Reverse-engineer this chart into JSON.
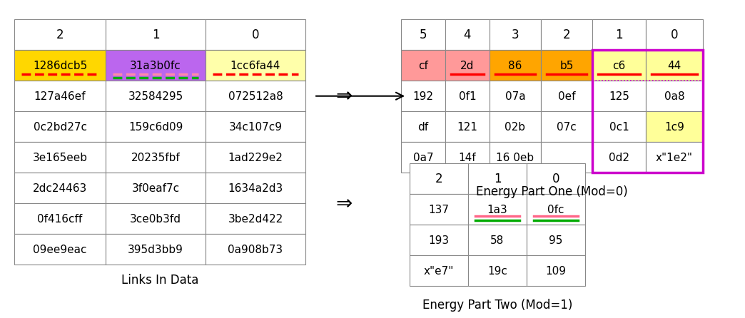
{
  "left_headers": [
    "2",
    "1",
    "0"
  ],
  "left_rows": [
    [
      "1286dcb5",
      "31a3b0fc",
      "1cc6fa44"
    ],
    [
      "127a46ef",
      "32584295",
      "072512a8"
    ],
    [
      "0c2bd27c",
      "159c6d09",
      "34c107c9"
    ],
    [
      "3e165eeb",
      "20235fbf",
      "1ad229e2"
    ],
    [
      "2dc24463",
      "3f0eaf7c",
      "1634a2d3"
    ],
    [
      "0f416cff",
      "3ce0b3fd",
      "3be2d422"
    ],
    [
      "09ee9eac",
      "395d3bb9",
      "0a908b73"
    ]
  ],
  "left_row0_bg": [
    "#FFD700",
    "#BB66EE",
    "#FFFFAA"
  ],
  "left_title": "Links In Data",
  "rt_headers": [
    "5",
    "4",
    "3",
    "2",
    "1",
    "0"
  ],
  "rt_rows": [
    [
      "cf",
      "2d",
      "86",
      "b5",
      "c6",
      "44"
    ],
    [
      "192",
      "0f1",
      "07a",
      "0ef",
      "125",
      "0a8"
    ],
    [
      "df",
      "121",
      "02b",
      "07c",
      "0c1",
      "1c9"
    ],
    [
      "0a7",
      "14f",
      "16 0eb",
      "",
      "0d2",
      "x\"1e2\""
    ]
  ],
  "rt_row0_bg": [
    "#FF9999",
    "#FF9999",
    "#FFA500",
    "#FFA500",
    "#FFFF99",
    "#FFFF99"
  ],
  "rt_title": "Energy Part One (Mod=0)",
  "rb_headers": [
    "2",
    "1",
    "0"
  ],
  "rb_rows": [
    [
      "137",
      "1a3",
      "0fc"
    ],
    [
      "193",
      "58",
      "95"
    ],
    [
      "x\"e7\"",
      "19c",
      "109"
    ]
  ],
  "rb_title": "Energy Part Two (Mod=1)",
  "bg": "#FFFFFF"
}
